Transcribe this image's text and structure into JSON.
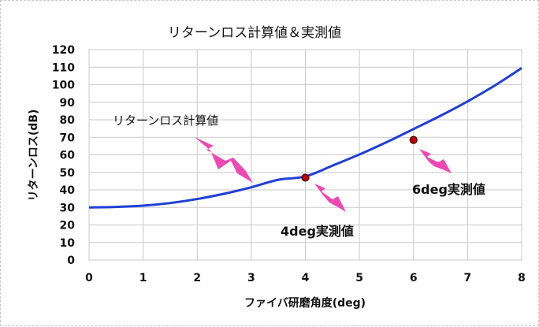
{
  "chart_data": {
    "type": "line",
    "title": "リターンロス計算値＆実測値",
    "xlabel": "ファイバ研磨角度(deg)",
    "ylabel": "リターンロス(dB)",
    "xlim": [
      0,
      8
    ],
    "ylim": [
      0,
      120
    ],
    "x_ticks": [
      "0",
      "1",
      "2",
      "3",
      "4",
      "5",
      "6",
      "7",
      "8"
    ],
    "y_ticks": [
      "0",
      "10",
      "20",
      "30",
      "40",
      "50",
      "60",
      "70",
      "80",
      "90",
      "100",
      "110",
      "120"
    ],
    "grid": true,
    "series": [
      {
        "name": "リターンロス計算値",
        "kind": "line",
        "color": "#1f3fd6",
        "points": [
          [
            0,
            30
          ],
          [
            0.5,
            30.3
          ],
          [
            1,
            31
          ],
          [
            1.5,
            32.5
          ],
          [
            2,
            34.8
          ],
          [
            2.5,
            37.8
          ],
          [
            3,
            41.5
          ],
          [
            3.5,
            45.8
          ],
          [
            4,
            47.7
          ],
          [
            4.5,
            53.8
          ],
          [
            5,
            60.2
          ],
          [
            5.5,
            67.2
          ],
          [
            6,
            74.7
          ],
          [
            6.5,
            82.3
          ],
          [
            7,
            90.5
          ],
          [
            7.5,
            99.5
          ],
          [
            8,
            109.5
          ]
        ]
      },
      {
        "name": "実測値",
        "kind": "scatter",
        "color": "#c00000",
        "points": [
          [
            4,
            47
          ],
          [
            6,
            68.5
          ]
        ]
      }
    ],
    "annotations": [
      {
        "text": "リターンロス計算値",
        "target": [
          3,
          41.5
        ]
      },
      {
        "text": "4deg実測値",
        "target": [
          4,
          47
        ]
      },
      {
        "text": "6deg実測値",
        "target": [
          6,
          68.5
        ]
      }
    ]
  }
}
